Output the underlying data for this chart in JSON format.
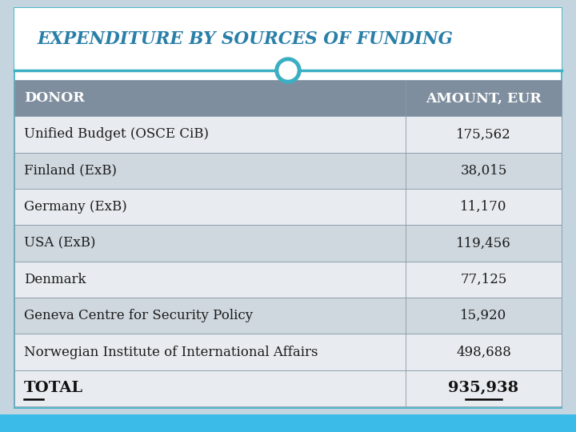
{
  "title": "EXPENDITURE BY SOURCES OF FUNDING",
  "title_color": "#2a7fa8",
  "header": [
    "DONOR",
    "AMOUNT, EUR"
  ],
  "rows": [
    [
      "Unified Budget (OSCE CiB)",
      "175,562"
    ],
    [
      "Finland (ExB)",
      "38,015"
    ],
    [
      "Germany (ExB)",
      "11,170"
    ],
    [
      "USA (ExB)",
      "119,456"
    ],
    [
      "Denmark",
      "77,125"
    ],
    [
      "Geneva Centre for Security Policy",
      "15,920"
    ],
    [
      "Norwegian Institute of International Affairs",
      "498,688"
    ]
  ],
  "total_label": "TOTAL",
  "total_value": "935,938",
  "page_bg": "#c5d5e0",
  "content_bg": "#ffffff",
  "header_bg": "#7f8e9e",
  "header_text": "#ffffff",
  "row_bg_light": "#e8ecf0",
  "row_bg_dark": "#d0d8df",
  "total_bg": "#e8ecf0",
  "border_color": "#8899aa",
  "title_bg": "#ffffff",
  "teal_color": "#3aafc4",
  "circle_fill": "#ffffff",
  "bottom_bar": "#3abbe8"
}
